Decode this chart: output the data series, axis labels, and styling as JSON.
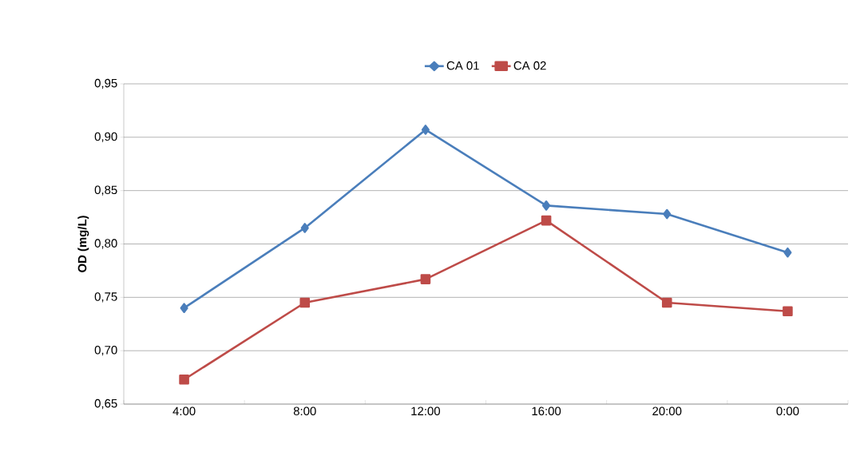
{
  "chart_data": {
    "type": "line",
    "ylabel": "OD (mg/L)",
    "categories": [
      "4:00",
      "8:00",
      "12:00",
      "16:00",
      "20:00",
      "0:00"
    ],
    "series": [
      {
        "name": "CA 01",
        "color": "#4a7ebb",
        "marker": "diamond",
        "values": [
          0.74,
          0.815,
          0.907,
          0.836,
          0.828,
          0.792
        ]
      },
      {
        "name": "CA 02",
        "color": "#be4b48",
        "marker": "square",
        "values": [
          0.673,
          0.745,
          0.767,
          0.822,
          0.745,
          0.737
        ]
      }
    ],
    "ylim": [
      0.65,
      0.95
    ],
    "yticks": [
      {
        "value": 0.65,
        "label": "0,65"
      },
      {
        "value": 0.7,
        "label": "0,70"
      },
      {
        "value": 0.75,
        "label": "0,75"
      },
      {
        "value": 0.8,
        "label": "0,80"
      },
      {
        "value": 0.85,
        "label": "0,85"
      },
      {
        "value": 0.9,
        "label": "0,90"
      },
      {
        "value": 0.95,
        "label": "0,95"
      }
    ],
    "grid": "y",
    "legend": "top",
    "line_style": "solid"
  }
}
